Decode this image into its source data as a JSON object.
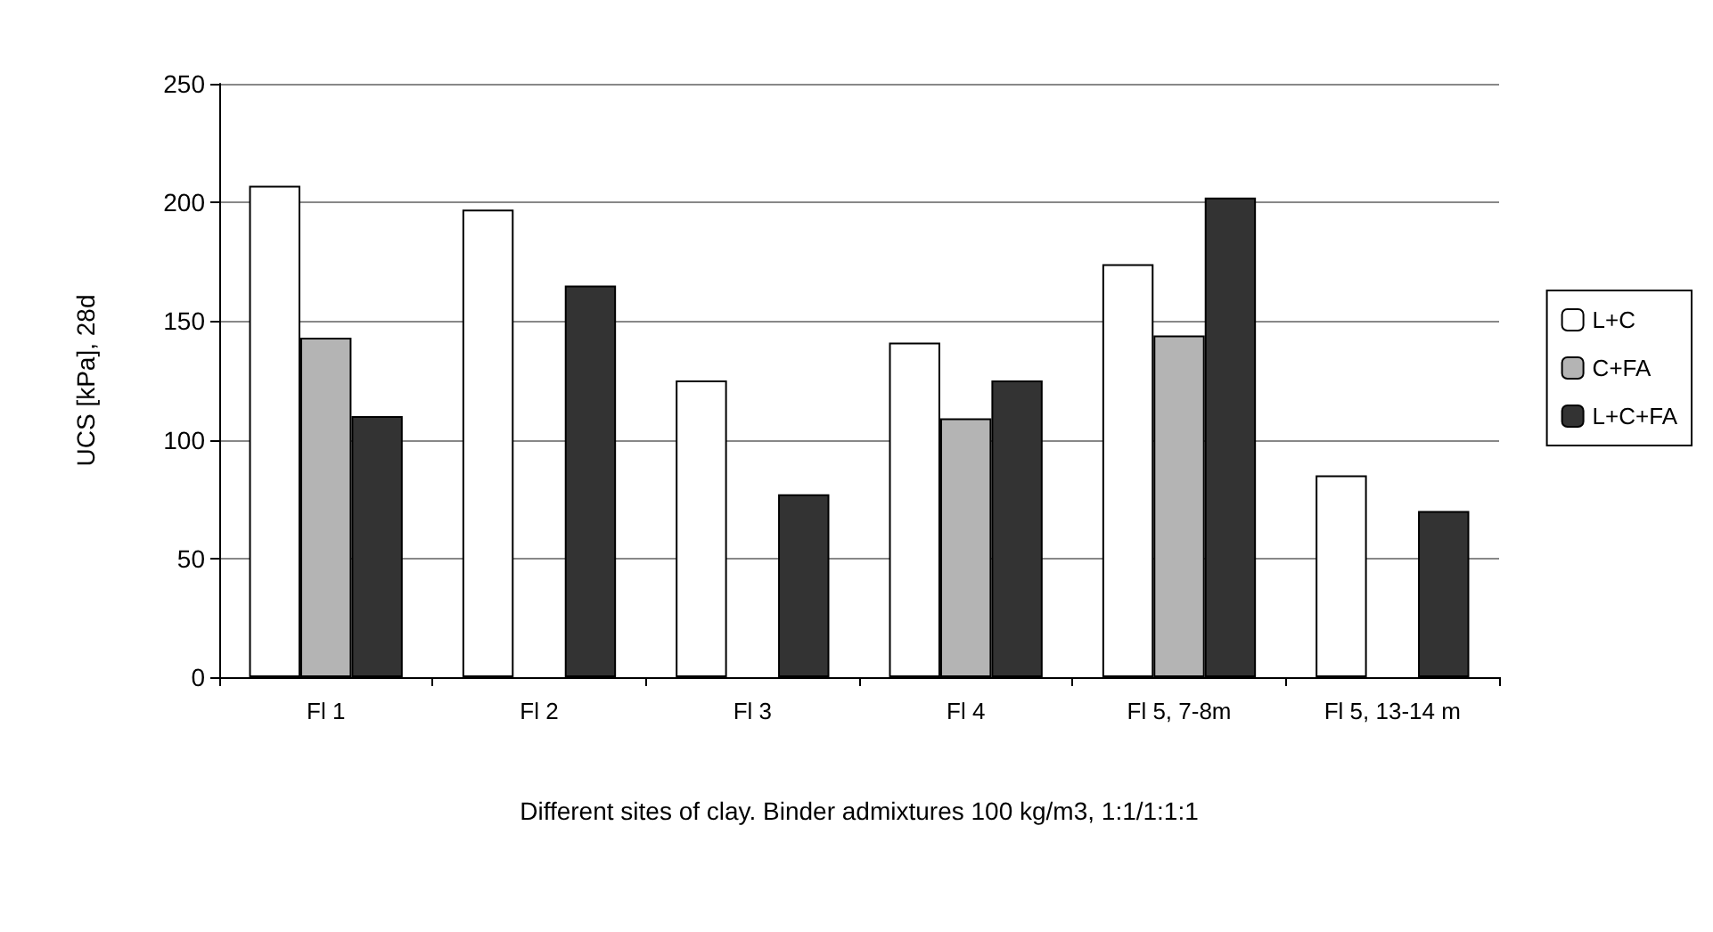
{
  "chart_data": {
    "type": "bar",
    "xlabel": "Different sites of clay. Binder admixtures 100 kg/m3, 1:1/1:1:1",
    "ylabel": "UCS [kPa], 28d",
    "categories": [
      "Fl 1",
      "Fl 2",
      "Fl 3",
      "Fl 4",
      "Fl 5, 7-8m",
      "Fl 5, 13-14 m"
    ],
    "series": [
      {
        "name": "L+C",
        "color": "#ffffff",
        "values": [
          207,
          197,
          125,
          141,
          174,
          85
        ]
      },
      {
        "name": "C+FA",
        "color": "#b4b4b4",
        "values": [
          143,
          null,
          null,
          109,
          144,
          null
        ]
      },
      {
        "name": "L+C+FA",
        "color": "#333333",
        "values": [
          110,
          165,
          77,
          125,
          202,
          70
        ]
      }
    ],
    "ylim": [
      0,
      250
    ],
    "yticks": [
      0,
      50,
      100,
      150,
      200,
      250
    ],
    "grid": "y",
    "legend": "right"
  }
}
